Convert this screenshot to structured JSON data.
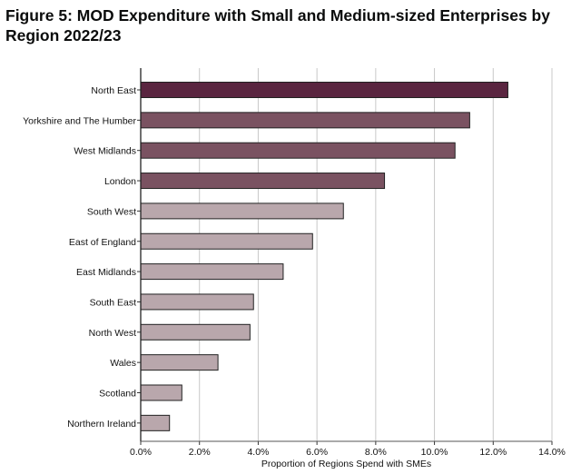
{
  "chart_data": {
    "type": "bar",
    "orientation": "horizontal",
    "title": "Figure 5: MOD Expenditure with Small and Medium-sized Enterprises by Region 2022/23",
    "xlabel": "Proportion of Regions Spend with SMEs",
    "ylabel": "",
    "xlim": [
      0,
      14
    ],
    "xticks": [
      0,
      2,
      4,
      6,
      8,
      10,
      12,
      14
    ],
    "xtick_labels": [
      "0.0%",
      "2.0%",
      "4.0%",
      "6.0%",
      "8.0%",
      "10.0%",
      "12.0%",
      "14.0%"
    ],
    "grid": "vertical",
    "categories": [
      "North East",
      "Yorkshire and The Humber",
      "West Midlands",
      "London",
      "South West",
      "East of England",
      "East Midlands",
      "South East",
      "North West",
      "Wales",
      "Scotland",
      "Northern Ireland"
    ],
    "values": [
      12.5,
      11.2,
      10.7,
      8.3,
      6.9,
      5.85,
      4.85,
      3.84,
      3.72,
      2.63,
      1.4,
      0.98
    ],
    "colors": [
      "#5a2540",
      "#7a5261",
      "#7a5261",
      "#7a5261",
      "#b9a7ac",
      "#b9a7ac",
      "#b9a7ac",
      "#b9a7ac",
      "#b9a7ac",
      "#b9a7ac",
      "#b9a7ac",
      "#b9a7ac"
    ]
  }
}
